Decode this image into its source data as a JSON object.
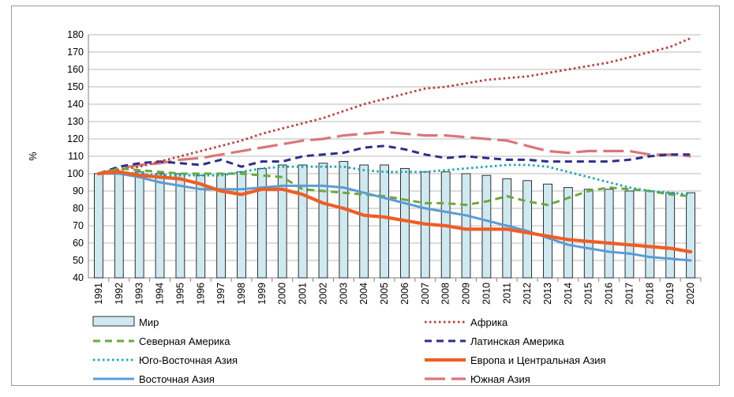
{
  "chart_data": {
    "type": "bar",
    "ylabel": "%",
    "ylim": [
      40,
      180
    ],
    "yticks": [
      "40",
      "50",
      "60",
      "70",
      "80",
      "90",
      "100",
      "110",
      "120",
      "130",
      "140",
      "150",
      "160",
      "170",
      "180"
    ],
    "grid": true,
    "legend_position": "bottom",
    "categories": [
      "1991",
      "1992",
      "1993",
      "1994",
      "1995",
      "1996",
      "1997",
      "1998",
      "1999",
      "2000",
      "2001",
      "2002",
      "2003",
      "2004",
      "2005",
      "2006",
      "2007",
      "2008",
      "2009",
      "2010",
      "2011",
      "2012",
      "2013",
      "2014",
      "2015",
      "2016",
      "2017",
      "2018",
      "2019",
      "2020"
    ],
    "series": [
      {
        "name": "Мир",
        "kind": "bar",
        "color": "#cfe9f1",
        "values": [
          100,
          101,
          101,
          100,
          100,
          99,
          100,
          101,
          103,
          105,
          105,
          106,
          107,
          105,
          105,
          103,
          101,
          101,
          100,
          99,
          97,
          96,
          94,
          92,
          91,
          91,
          90,
          90,
          89,
          89
        ]
      },
      {
        "name": "Африка",
        "kind": "line",
        "style": "dotted",
        "color": "#c0393b",
        "values": [
          100,
          102,
          104,
          107,
          110,
          113,
          116,
          119,
          123,
          126,
          129,
          132,
          136,
          140,
          143,
          146,
          149,
          150,
          152,
          154,
          155,
          156,
          158,
          160,
          162,
          164,
          167,
          170,
          173,
          178
        ]
      },
      {
        "name": "Северная Америка",
        "kind": "line",
        "style": "dashed",
        "color": "#6aaa3a",
        "values": [
          100,
          103,
          102,
          101,
          100,
          100,
          100,
          100,
          99,
          98,
          91,
          90,
          89,
          88,
          87,
          85,
          83,
          83,
          82,
          84,
          87,
          84,
          82,
          86,
          90,
          92,
          91,
          90,
          88,
          87
        ]
      },
      {
        "name": "Латинская Америка",
        "kind": "line",
        "style": "dashed",
        "color": "#2e2e8c",
        "values": [
          100,
          104,
          106,
          107,
          106,
          105,
          108,
          104,
          107,
          107,
          110,
          111,
          112,
          115,
          116,
          114,
          111,
          109,
          110,
          109,
          108,
          108,
          107,
          107,
          107,
          107,
          108,
          110,
          111,
          111
        ]
      },
      {
        "name": "Юго-Восточная Азия",
        "kind": "line",
        "style": "dotted",
        "color": "#19a7b3",
        "values": [
          100,
          101,
          100,
          99,
          99,
          99,
          99,
          101,
          103,
          104,
          104,
          104,
          104,
          102,
          101,
          101,
          101,
          102,
          103,
          104,
          105,
          105,
          104,
          101,
          98,
          95,
          92,
          90,
          89,
          88
        ]
      },
      {
        "name": "Европа и Центральная Азия",
        "kind": "line",
        "style": "solid-thick",
        "color": "#ef5e24",
        "values": [
          100,
          101,
          99,
          98,
          97,
          94,
          90,
          88,
          91,
          91,
          88,
          83,
          80,
          76,
          75,
          73,
          71,
          70,
          68,
          68,
          68,
          66,
          64,
          62,
          61,
          60,
          59,
          58,
          57,
          55
        ]
      },
      {
        "name": "Восточная Азия",
        "kind": "line",
        "style": "solid",
        "color": "#5b9bd5",
        "values": [
          100,
          100,
          98,
          95,
          93,
          91,
          91,
          91,
          92,
          93,
          93,
          93,
          92,
          89,
          86,
          83,
          80,
          78,
          76,
          73,
          70,
          67,
          63,
          59,
          57,
          55,
          54,
          52,
          51,
          50
        ]
      },
      {
        "name": "Южная Азия",
        "kind": "line",
        "style": "long-dashed",
        "color": "#d9777a",
        "values": [
          100,
          103,
          105,
          106,
          108,
          109,
          111,
          113,
          115,
          117,
          119,
          120,
          122,
          123,
          124,
          123,
          122,
          122,
          121,
          120,
          119,
          116,
          113,
          112,
          113,
          113,
          113,
          111,
          111,
          110
        ]
      }
    ]
  }
}
